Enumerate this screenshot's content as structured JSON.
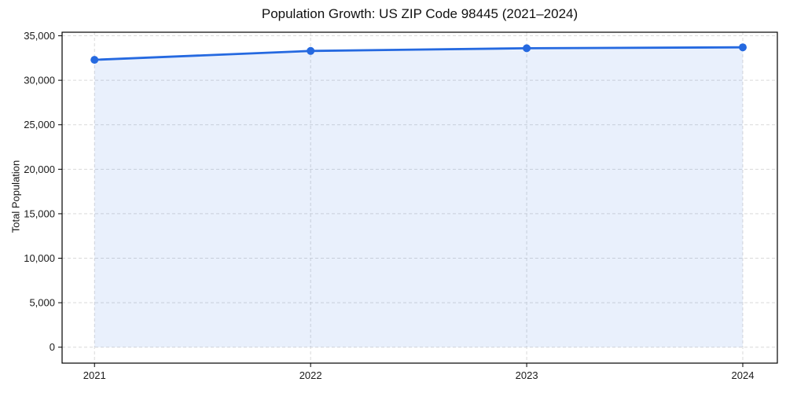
{
  "chart_data": {
    "type": "line",
    "title": "Population Growth: US ZIP Code 98445 (2021–2024)",
    "xlabel": "",
    "ylabel": "Total Population",
    "x": [
      2021,
      2022,
      2023,
      2024
    ],
    "series": [
      {
        "name": "Total Population",
        "values": [
          32300,
          33300,
          33600,
          33700
        ]
      }
    ],
    "area_fill_to_zero": true,
    "marker": "circle",
    "xlim": [
      2020.85,
      2024.16
    ],
    "ylim": [
      -1790,
      35400
    ],
    "xticks": [
      2021,
      2022,
      2023,
      2024
    ],
    "xtick_labels": [
      "2021",
      "2022",
      "2023",
      "2024"
    ],
    "yticks": [
      0,
      5000,
      10000,
      15000,
      20000,
      25000,
      30000,
      35000
    ],
    "ytick_labels": [
      "0",
      "5,000",
      "10,000",
      "15,000",
      "20,000",
      "25,000",
      "30,000",
      "35,000"
    ],
    "grid": true,
    "grid_style": "dashed",
    "legend": "none",
    "colors": {
      "line": "#2569e0",
      "marker": "#2569e0",
      "fill": "rgba(37, 105, 224, 0.10)",
      "grid": "#d9d9d9",
      "spine": "#000000",
      "tick_text": "#1a1a1a",
      "title_text": "#111111",
      "background": "#ffffff"
    }
  }
}
